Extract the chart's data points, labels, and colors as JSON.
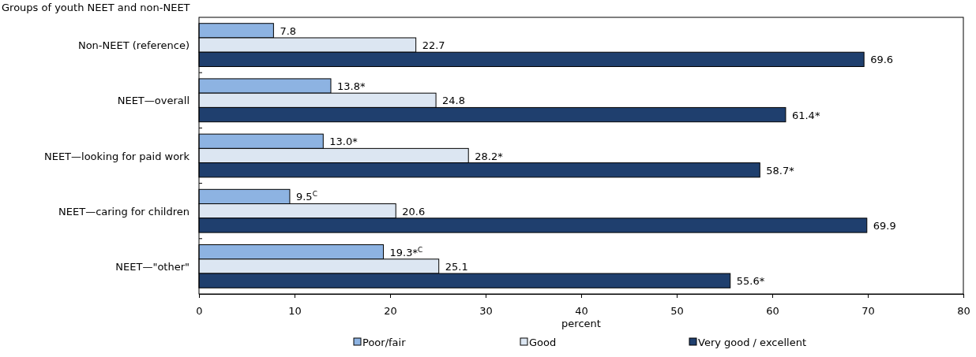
{
  "chart_data": {
    "type": "bar",
    "orientation": "horizontal",
    "ylabel": "Groups of youth NEET and non-NEET",
    "xlabel": "percent",
    "categories": [
      "Non-NEET (reference)",
      "NEET—overall",
      "NEET—looking for paid work",
      "NEET—caring for children",
      "NEET—\"other\""
    ],
    "series": [
      {
        "name": "Poor/fair",
        "color": "#8db3e2",
        "values": [
          7.8,
          13.8,
          13.0,
          9.5,
          19.3
        ],
        "value_labels": [
          "7.8",
          "13.8*",
          "13.0*",
          "9.5$^{C}$",
          "19.3*$^{C}$"
        ]
      },
      {
        "name": "Good",
        "color": "#dce6f2",
        "values": [
          22.7,
          24.8,
          28.2,
          20.6,
          25.1
        ],
        "value_labels": [
          "22.7",
          "24.8",
          "28.2*",
          "20.6",
          "25.1"
        ]
      },
      {
        "name": "Very good / excellent",
        "color": "#1f3f6e",
        "values": [
          69.6,
          61.4,
          58.7,
          69.9,
          55.6
        ],
        "value_labels": [
          "69.6",
          "61.4*",
          "58.7*",
          "69.9",
          "55.6*"
        ]
      }
    ],
    "xlim": [
      0,
      80
    ],
    "xticks": [
      0,
      10,
      20,
      30,
      40,
      50,
      60,
      70,
      80
    ],
    "grid": false,
    "legend": "bottom"
  }
}
